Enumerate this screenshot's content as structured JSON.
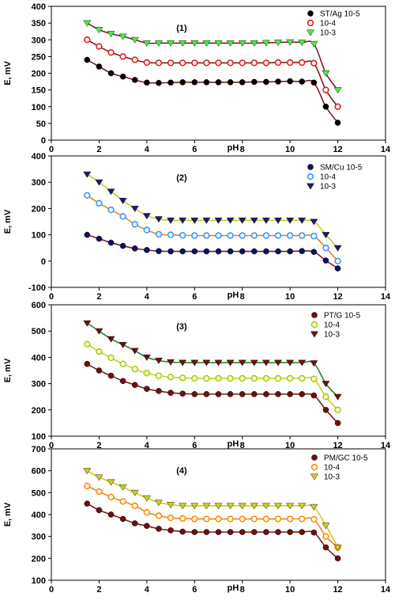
{
  "chart_data": [
    {
      "type": "scatter",
      "title": "(1)",
      "xlabel": "pH",
      "ylabel": "E, mV",
      "xlim": [
        0,
        14
      ],
      "ylim": [
        0,
        400
      ],
      "xticks": [
        "0",
        "2",
        "4",
        "6",
        "8",
        "10",
        "12",
        "14"
      ],
      "yticks": [
        "0",
        "50",
        "100",
        "150",
        "200",
        "250",
        "300",
        "350",
        "400"
      ],
      "legend_position": "top-right",
      "x": [
        1.5,
        2,
        2.5,
        3,
        3.5,
        4,
        4.5,
        5,
        5.5,
        6,
        6.5,
        7,
        7.5,
        8,
        8.5,
        9,
        9.5,
        10,
        10.5,
        11,
        11.5,
        12
      ],
      "series": [
        {
          "name": "ST/Ag 10-5",
          "marker": "filled-circle",
          "marker_color": "#000000",
          "line_color": "#7a1f1f",
          "values": [
            240,
            220,
            200,
            190,
            180,
            172,
            171,
            172,
            173,
            173,
            173,
            173,
            173,
            173,
            174,
            174,
            175,
            176,
            175,
            172,
            100,
            52
          ]
        },
        {
          "name": "10-4",
          "marker": "open-circle",
          "marker_color": "#e02020",
          "line_color": "#7a1f1f",
          "values": [
            300,
            280,
            262,
            250,
            240,
            232,
            231,
            231,
            231,
            231,
            231,
            231,
            231,
            231,
            231,
            231,
            232,
            232,
            232,
            230,
            150,
            100
          ]
        },
        {
          "name": "10-3",
          "marker": "triangle-down",
          "marker_color": "#44ee44",
          "line_color": "#7a1f1f",
          "values": [
            350,
            330,
            318,
            310,
            300,
            290,
            290,
            290,
            290,
            290,
            290,
            290,
            290,
            290,
            290,
            291,
            292,
            293,
            292,
            288,
            200,
            150
          ]
        }
      ]
    },
    {
      "type": "scatter",
      "title": "(2)",
      "xlabel": "pH",
      "ylabel": "E, mV",
      "xlim": [
        0,
        14
      ],
      "ylim": [
        -100,
        400
      ],
      "xticks": [
        "0",
        "2",
        "4",
        "6",
        "8",
        "10",
        "12",
        "14"
      ],
      "yticks": [
        "-100",
        "0",
        "100",
        "200",
        "300",
        "400"
      ],
      "legend_position": "top-right",
      "x": [
        1.5,
        2,
        2.5,
        3,
        3.5,
        4,
        4.5,
        5,
        5.5,
        6,
        6.5,
        7,
        7.5,
        8,
        8.5,
        9,
        9.5,
        10,
        10.5,
        11,
        11.5,
        12
      ],
      "series": [
        {
          "name": "SM/Cu 10-5",
          "marker": "filled-circle",
          "marker_color": "#101060",
          "line_color": "#7a1f1f",
          "values": [
            100,
            85,
            70,
            58,
            48,
            42,
            38,
            37,
            37,
            37,
            37,
            37,
            37,
            37,
            37,
            37,
            37,
            37,
            38,
            35,
            2,
            -28
          ]
        },
        {
          "name": "10-4",
          "marker": "open-circle",
          "marker_color": "#3399ff",
          "line_color": "#e08a20",
          "values": [
            250,
            220,
            195,
            170,
            140,
            118,
            102,
            100,
            98,
            97,
            97,
            97,
            97,
            97,
            97,
            97,
            97,
            97,
            97,
            95,
            50,
            0
          ]
        },
        {
          "name": "10-3",
          "marker": "triangle-down",
          "marker_color": "#1a1a70",
          "line_color": "#cccc22",
          "values": [
            330,
            300,
            265,
            230,
            200,
            172,
            160,
            155,
            155,
            155,
            155,
            155,
            155,
            155,
            155,
            155,
            155,
            155,
            155,
            150,
            100,
            50
          ]
        }
      ]
    },
    {
      "type": "scatter",
      "title": "(3)",
      "xlabel": "pH",
      "ylabel": "E, mV",
      "xlim": [
        0,
        14
      ],
      "ylim": [
        100,
        600
      ],
      "xticks": [
        "0",
        "2",
        "4",
        "6",
        "8",
        "10",
        "12",
        "14"
      ],
      "yticks": [
        "100",
        "200",
        "300",
        "400",
        "500",
        "600"
      ],
      "legend_position": "top-right",
      "x": [
        1.5,
        2,
        2.5,
        3,
        3.5,
        4,
        4.5,
        5,
        5.5,
        6,
        6.5,
        7,
        7.5,
        8,
        8.5,
        9,
        9.5,
        10,
        10.5,
        11,
        11.5,
        12
      ],
      "series": [
        {
          "name": "PT/G 10-5",
          "marker": "filled-circle",
          "marker_color": "#6a1010",
          "line_color": "#7a1f1f",
          "values": [
            375,
            350,
            330,
            310,
            295,
            280,
            272,
            265,
            262,
            260,
            260,
            260,
            260,
            260,
            260,
            260,
            260,
            260,
            260,
            255,
            200,
            150
          ]
        },
        {
          "name": "10-4",
          "marker": "open-circle",
          "marker_color": "#aacc00",
          "line_color": "#cccc22",
          "values": [
            450,
            422,
            398,
            375,
            355,
            340,
            330,
            325,
            322,
            320,
            320,
            320,
            320,
            320,
            320,
            320,
            320,
            320,
            320,
            318,
            250,
            200
          ]
        },
        {
          "name": "10-3",
          "marker": "triangle-down",
          "marker_color": "#6a1010",
          "line_color": "#2e7d32",
          "values": [
            530,
            500,
            470,
            448,
            425,
            400,
            388,
            382,
            380,
            380,
            380,
            380,
            380,
            380,
            380,
            380,
            380,
            380,
            380,
            378,
            300,
            250
          ]
        }
      ]
    },
    {
      "type": "scatter",
      "title": "(4)",
      "xlabel": "pH",
      "ylabel": "E, mV",
      "xlim": [
        0,
        14
      ],
      "ylim": [
        100,
        700
      ],
      "xticks": [
        "0",
        "2",
        "4",
        "6",
        "8",
        "10",
        "12",
        "14"
      ],
      "yticks": [
        "100",
        "200",
        "300",
        "400",
        "500",
        "600",
        "700"
      ],
      "legend_position": "top-right",
      "x": [
        1.5,
        2,
        2.5,
        3,
        3.5,
        4,
        4.5,
        5,
        5.5,
        6,
        6.5,
        7,
        7.5,
        8,
        8.5,
        9,
        9.5,
        10,
        10.5,
        11,
        11.5,
        12
      ],
      "series": [
        {
          "name": "PM/GC 10-5",
          "marker": "filled-circle",
          "marker_color": "#6a1010",
          "line_color": "#7a1f1f",
          "values": [
            450,
            420,
            400,
            380,
            360,
            348,
            335,
            328,
            322,
            320,
            320,
            320,
            320,
            320,
            320,
            320,
            320,
            320,
            320,
            318,
            250,
            200
          ]
        },
        {
          "name": "10-4",
          "marker": "open-circle",
          "marker_color": "#ff8c00",
          "line_color": "#e08a20",
          "values": [
            530,
            505,
            480,
            460,
            440,
            410,
            395,
            385,
            382,
            380,
            380,
            380,
            380,
            380,
            380,
            380,
            380,
            380,
            380,
            378,
            300,
            250
          ]
        },
        {
          "name": "10-3",
          "marker": "triangle-down",
          "marker_color": "#cccc22",
          "line_color": "#cccc22",
          "values": [
            600,
            570,
            548,
            525,
            500,
            475,
            455,
            445,
            440,
            440,
            440,
            440,
            440,
            440,
            440,
            440,
            440,
            440,
            440,
            435,
            350,
            250
          ]
        }
      ]
    }
  ]
}
